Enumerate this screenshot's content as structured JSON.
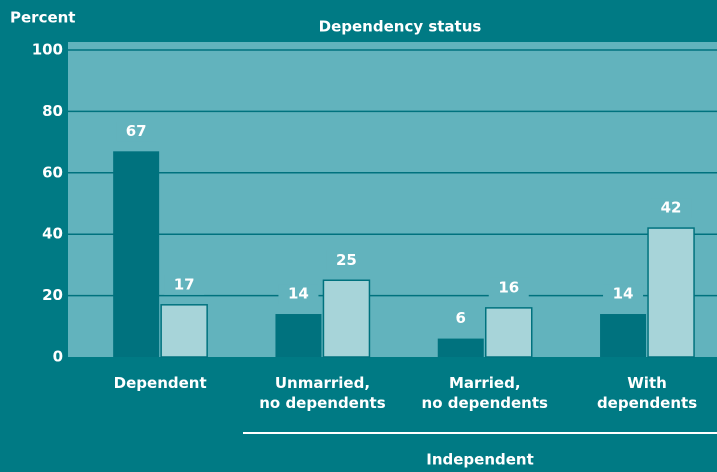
{
  "chart_data": {
    "type": "bar",
    "title": "Dependency status",
    "y_label": "Percent",
    "group_label": "Independent",
    "categories": [
      "Dependent",
      "Unmarried,\nno dependents",
      "Married,\nno dependents",
      "With\ndependents"
    ],
    "series": [
      {
        "color": "#00727e",
        "values": [
          67,
          14,
          6,
          14
        ]
      },
      {
        "color": "#a7d4d9",
        "values": [
          17,
          25,
          16,
          42
        ]
      }
    ],
    "ylim": [
      0,
      100
    ],
    "yticks": [
      0,
      20,
      40,
      60,
      80,
      100
    ],
    "grid": true
  }
}
